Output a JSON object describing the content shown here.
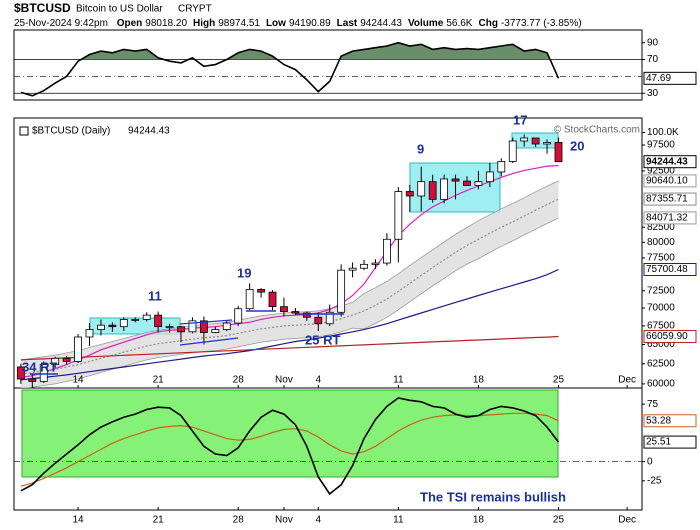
{
  "header": {
    "symbol": "$BTCUSD",
    "name": "Bitcoin to US Dollar",
    "exchange": "CRYPT",
    "datetime": "25-Nov-2024 9:42pm",
    "quote": [
      {
        "label": "Open",
        "value": "98018.20"
      },
      {
        "label": "High",
        "value": "98974.51"
      },
      {
        "label": "Low",
        "value": "94190.89"
      },
      {
        "label": "Last",
        "value": "94244.43"
      },
      {
        "label": "Volume",
        "value": "56.6K"
      },
      {
        "label": "Chg",
        "value": "-3773.77 (-3.85%)"
      }
    ]
  },
  "watermark": "© StockCharts.com",
  "tsi_note": "The TSI remains bullish",
  "chart_data": [
    {
      "type": "line",
      "ylim": [
        22,
        105
      ],
      "yticks": [
        90,
        70,
        30
      ],
      "reference_lines": [
        70,
        30
      ],
      "midline": 50,
      "xlim": [
        -0.6,
        54.3
      ],
      "color": "#000000",
      "fill_above": 70,
      "fill_color": "#4f7a4f",
      "values": [
        31,
        27,
        33,
        42,
        50,
        68,
        76,
        80,
        78,
        82,
        80,
        82,
        72,
        68,
        66,
        72,
        62,
        64,
        70,
        78,
        82,
        80,
        74,
        64,
        58,
        46,
        32,
        44,
        74,
        80,
        82,
        84,
        86,
        90,
        86,
        88,
        82,
        84,
        82,
        83,
        82,
        84,
        86,
        88,
        80,
        82,
        78,
        47.69
      ]
    },
    {
      "type": "candlestick",
      "legend": "$BTCUSD (Daily)",
      "log_scale": true,
      "ylim": [
        59500,
        103000
      ],
      "yticks": [
        60000,
        62500,
        65000,
        67500,
        70000,
        72500,
        77500,
        80000,
        82500,
        92500,
        97500,
        {
          "value": 100000,
          "label": "100.0K"
        }
      ],
      "xlim": [
        -0.6,
        54.3
      ],
      "xticks": [
        {
          "value": 5,
          "label": "14"
        },
        {
          "value": 12,
          "label": "21"
        },
        {
          "value": 19,
          "label": "28"
        },
        {
          "value": 23,
          "label": "Nov"
        },
        {
          "value": 26,
          "label": "4"
        },
        {
          "value": 33,
          "label": "11"
        },
        {
          "value": 40,
          "label": "18"
        },
        {
          "value": 47,
          "label": "25"
        },
        {
          "value": 53,
          "label": "Dec"
        }
      ],
      "up_color": "#ffffff",
      "down_color": "#d0103a",
      "open": [
        62100,
        60600,
        60300,
        62400,
        63200,
        62800,
        66000,
        67000,
        67600,
        67400,
        68400,
        68400,
        69000,
        67400,
        67400,
        66700,
        68200,
        66600,
        67000,
        67900,
        69900,
        72700,
        72300,
        70200,
        69500,
        69300,
        68700,
        67800,
        69400,
        75600,
        75900,
        76500,
        76700,
        80500,
        88700,
        87900,
        90500,
        87300,
        91000,
        90600,
        89800,
        90500,
        92300,
        94300,
        98300,
        98900,
        97700,
        98018.2
      ],
      "high": [
        62500,
        61300,
        62800,
        63400,
        63500,
        66400,
        67900,
        68400,
        68000,
        68700,
        68700,
        69400,
        69500,
        67800,
        67500,
        68700,
        68800,
        67400,
        68300,
        70300,
        73600,
        72900,
        72600,
        71500,
        70000,
        69500,
        69400,
        70500,
        76500,
        76800,
        77200,
        77300,
        81500,
        89500,
        89900,
        93300,
        91800,
        91800,
        91800,
        91500,
        92500,
        94000,
        94900,
        99000,
        99600,
        98700,
        98600,
        98974.51
      ],
      "low": [
        60000,
        58900,
        60100,
        62000,
        62400,
        62600,
        64800,
        66200,
        66700,
        66800,
        68000,
        68100,
        66600,
        66600,
        65300,
        66500,
        65000,
        66500,
        66800,
        67500,
        69700,
        71500,
        69700,
        68800,
        69000,
        68200,
        66800,
        67500,
        68800,
        74500,
        75600,
        75800,
        76300,
        76800,
        85100,
        85200,
        86700,
        86600,
        87300,
        89900,
        89100,
        89500,
        91500,
        94000,
        97200,
        97100,
        95800,
        94190.89
      ],
      "close": [
        60600,
        60300,
        62400,
        63200,
        62800,
        66000,
        67000,
        67600,
        67400,
        68400,
        68400,
        69000,
        67400,
        67400,
        66700,
        68200,
        66600,
        67000,
        67900,
        69900,
        72700,
        72300,
        70200,
        69500,
        69300,
        68700,
        67800,
        69400,
        75600,
        75900,
        76500,
        76700,
        80500,
        88700,
        87900,
        90500,
        87300,
        91000,
        90600,
        89800,
        90500,
        92300,
        94300,
        98300,
        98900,
        97700,
        98000,
        94244.43
      ],
      "band": {
        "color": "#dcdcdc",
        "edge": "#9a9a9a",
        "upper_label": "90640.10",
        "lower_label": "84071.32",
        "upper": [
          63000,
          63200,
          63400,
          63600,
          63900,
          64200,
          64600,
          65000,
          65400,
          65800,
          66200,
          66600,
          66900,
          67100,
          67300,
          67500,
          67700,
          67800,
          68000,
          68300,
          68600,
          68900,
          69100,
          69300,
          69400,
          69500,
          69600,
          69900,
          70300,
          70800,
          72100,
          72950,
          73900,
          75050,
          76300,
          77550,
          78800,
          80050,
          81300,
          82450,
          83600,
          84620,
          85650,
          86570,
          87580,
          88650,
          89670,
          90640.1
        ],
        "lower": [
          59400,
          59600,
          59800,
          60000,
          60300,
          60600,
          61000,
          61400,
          61800,
          62200,
          62600,
          63000,
          63300,
          63500,
          63700,
          63900,
          64100,
          64200,
          64400,
          64700,
          65000,
          65300,
          65500,
          65700,
          65800,
          65900,
          66000,
          66300,
          66700,
          67200,
          67100,
          67850,
          68700,
          69750,
          70900,
          72050,
          73200,
          74350,
          75500,
          76550,
          77400,
          78380,
          79350,
          80230,
          81220,
          82150,
          83130,
          84071.32
        ]
      },
      "overlays": [
        {
          "color": "#e020c0",
          "values": [
            60800,
            61000,
            61400,
            61900,
            62400,
            63000,
            63600,
            64300,
            64800,
            65300,
            65800,
            66300,
            66700,
            66900,
            67000,
            67200,
            67300,
            67400,
            67600,
            67800,
            68000,
            68400,
            68700,
            68900,
            69000,
            69100,
            69300,
            69800,
            70600,
            71800,
            73500,
            76000,
            78600,
            81100,
            83000,
            84600,
            86000,
            87000,
            88000,
            88900,
            89700,
            90500,
            91300,
            92000,
            92600,
            93000,
            93400,
            93500
          ]
        },
        {
          "color": "#8a8a8a",
          "dash": "2,2",
          "last_label": "87355.71",
          "values": [
            61200,
            61400,
            61600,
            61800,
            62100,
            62400,
            62800,
            63200,
            63600,
            64000,
            64400,
            64800,
            65100,
            65300,
            65500,
            65700,
            65900,
            66000,
            66200,
            66500,
            66800,
            67100,
            67300,
            67500,
            67600,
            67700,
            67800,
            68100,
            68500,
            69000,
            69600,
            70400,
            71300,
            72400,
            73600,
            74800,
            76000,
            77200,
            78400,
            79500,
            80500,
            81500,
            82500,
            83400,
            84400,
            85400,
            86400,
            87355.71
          ]
        },
        {
          "color": "#1c1c8c",
          "last_label": "75700.48",
          "values": [
            60500,
            60650,
            60800,
            60950,
            61100,
            61300,
            61500,
            61700,
            61900,
            62100,
            62300,
            62500,
            62700,
            62900,
            63100,
            63300,
            63500,
            63650,
            63800,
            64000,
            64200,
            64500,
            64800,
            65100,
            65400,
            65600,
            65850,
            66100,
            66400,
            66700,
            67000,
            67400,
            67800,
            68300,
            68800,
            69300,
            69800,
            70300,
            70800,
            71300,
            71800,
            72300,
            72800,
            73300,
            73800,
            74300,
            74900,
            75700.48
          ]
        },
        {
          "color": "#b22222",
          "last_label": "66059.90",
          "values": [
            63000,
            63070,
            63130,
            63200,
            63260,
            63330,
            63390,
            63460,
            63520,
            63590,
            63650,
            63720,
            63780,
            63850,
            63910,
            63980,
            64040,
            64110,
            64170,
            64240,
            64300,
            64370,
            64430,
            64500,
            64560,
            64630,
            64690,
            64760,
            64820,
            64890,
            64950,
            65020,
            65080,
            65150,
            65210,
            65280,
            65340,
            65410,
            65470,
            65540,
            65600,
            65670,
            65730,
            65800,
            65860,
            65930,
            65990,
            66059.9
          ]
        }
      ],
      "annotations": [
        "34 RT",
        "11",
        "19",
        "25 RT",
        "9",
        "17",
        "20"
      ]
    },
    {
      "type": "line",
      "ylim": [
        -63,
        96
      ],
      "yticks": [
        75,
        0,
        -25
      ],
      "midline": 0,
      "xlim": [
        -0.6,
        54.3
      ],
      "xticks": [
        {
          "value": 5,
          "label": "14"
        },
        {
          "value": 12,
          "label": "21"
        },
        {
          "value": 19,
          "label": "28"
        },
        {
          "value": 23,
          "label": "Nov"
        },
        {
          "value": 26,
          "label": "4"
        },
        {
          "value": 33,
          "label": "11"
        },
        {
          "value": 40,
          "label": "18"
        },
        {
          "value": 47,
          "label": "25"
        },
        {
          "value": 53,
          "label": "Dec"
        }
      ],
      "series": [
        {
          "color": "#c8641e",
          "values": [
            -32,
            -28,
            -22,
            -15,
            -8,
            0,
            8,
            16,
            24,
            30,
            35,
            40,
            44,
            46,
            47,
            45,
            40,
            35,
            30,
            28,
            29,
            33,
            38,
            42,
            43,
            40,
            32,
            22,
            14,
            10,
            13,
            20,
            30,
            40,
            48,
            54,
            58,
            60,
            61,
            60,
            60,
            61,
            62,
            63,
            63,
            62,
            60,
            53.28
          ]
        },
        {
          "color": "#000000",
          "values": [
            -38,
            -30,
            -15,
            -2,
            10,
            22,
            35,
            45,
            52,
            58,
            62,
            68,
            71,
            70,
            60,
            40,
            20,
            10,
            8,
            18,
            40,
            58,
            67,
            62,
            48,
            20,
            -20,
            -42,
            -30,
            -5,
            30,
            55,
            72,
            83,
            80,
            78,
            72,
            70,
            62,
            58,
            60,
            68,
            72,
            70,
            66,
            60,
            45,
            25.51
          ]
        }
      ]
    }
  ]
}
